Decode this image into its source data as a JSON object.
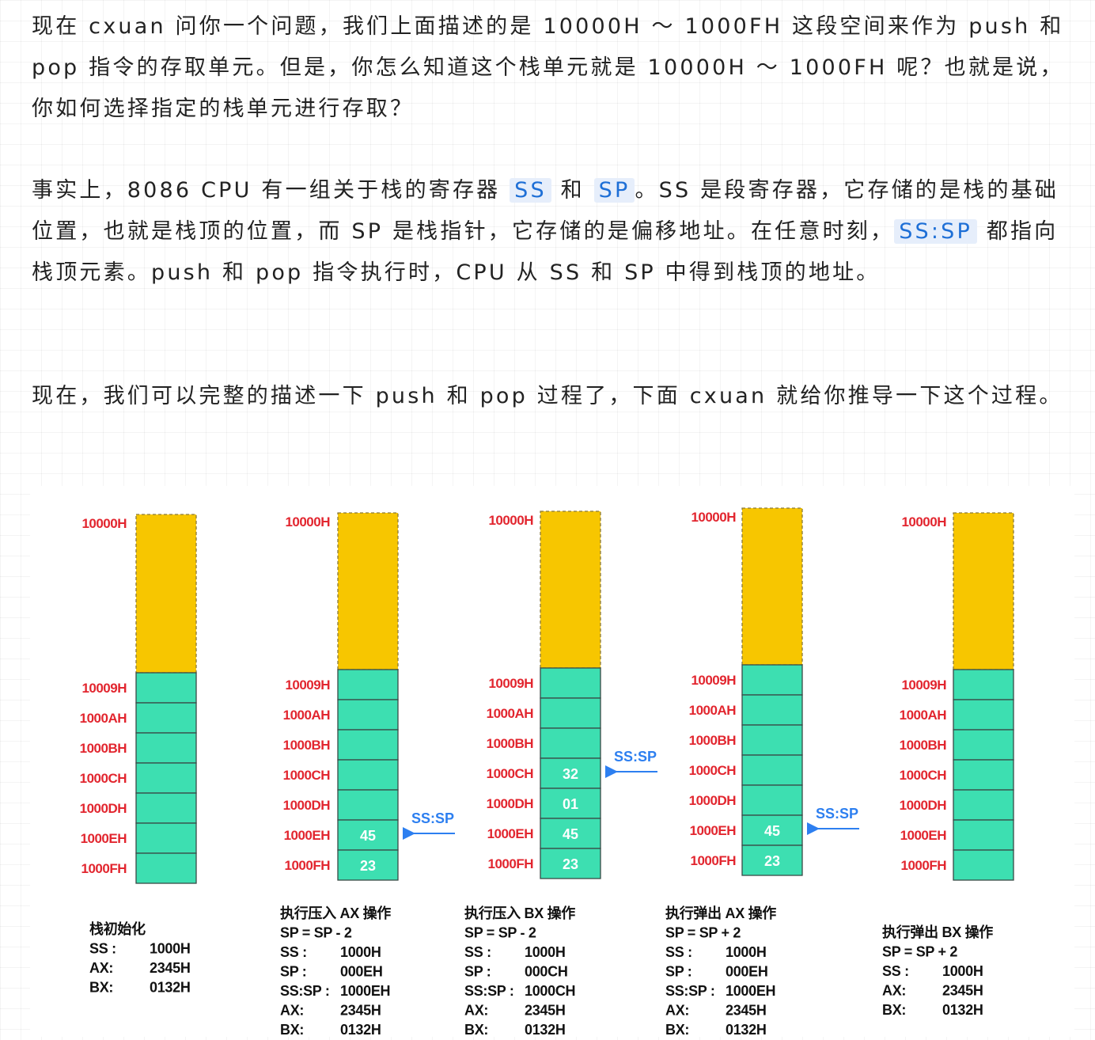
{
  "article": {
    "p1": [
      "现在 cxuan 问你一个问题，我们上面描述的是 10000H ～ 1000FH 这段空间来作为 push 和 pop 指令的存取单元。但是，你怎么知道这个栈单元就是 10000H ～ 1000FH 呢？也就是说，你如何选择指定的栈单元进行存取？"
    ],
    "p2": [
      "事实上，8086 CPU 有一组关于栈的寄存器 ",
      "SS",
      " 和 ",
      "SP",
      "。SS 是段寄存器，它存储的是栈的基础位置，也就是栈顶的位置，而 SP 是栈指针，它存储的是偏移地址。在任意时刻，",
      "SS:SP",
      " 都指向栈顶元素。push 和 pop 指令执行时，CPU 从 SS 和 SP 中得到栈顶的地址。"
    ],
    "p3": [
      "现在，我们可以完整的描述一下 push 和 pop 过程了，下面 cxuan 就给你推导一下这个过程。"
    ]
  },
  "diagram": {
    "colors": {
      "free": "#f7c600",
      "cell": "#3ddfb1",
      "address": "#e2262f",
      "pointer": "#2d7ff0"
    },
    "top_address": "10000H",
    "cell_addresses": [
      "10009H",
      "1000AH",
      "1000BH",
      "1000CH",
      "1000DH",
      "1000EH",
      "1000FH"
    ],
    "pointer_label": "SS:SP",
    "stages": [
      {
        "cells": [
          "",
          "",
          "",
          "",
          "",
          "",
          ""
        ],
        "pointer_at": null,
        "caption": [
          "栈初始化",
          "SS :      1000H",
          "AX:      2345H",
          "BX:      0132H"
        ]
      },
      {
        "cells": [
          "",
          "",
          "",
          "",
          "",
          "45",
          "23"
        ],
        "pointer_at": 5,
        "caption": [
          "执行压入 AX 操作",
          "SP = SP - 2",
          "SS :        1000H",
          "SP :        000EH",
          "SS:SP : 1000EH",
          "AX:        2345H",
          "BX:        0132H"
        ]
      },
      {
        "cells": [
          "",
          "",
          "",
          "32",
          "01",
          "45",
          "23"
        ],
        "pointer_at": 3,
        "caption": [
          "执行压入 BX 操作",
          "SP = SP - 2",
          "SS :        1000H",
          "SP :        000CH",
          "SS:SP : 1000CH",
          "AX:        2345H",
          "BX:        0132H"
        ]
      },
      {
        "cells": [
          "",
          "",
          "",
          "",
          "",
          "45",
          "23"
        ],
        "pointer_at": 5,
        "caption": [
          "执行弹出 AX 操作",
          "SP = SP + 2",
          "SS :        1000H",
          "SP :        000EH",
          "SS:SP : 1000EH",
          "AX:        2345H",
          "BX:        0132H"
        ]
      },
      {
        "cells": [
          "",
          "",
          "",
          "",
          "",
          "",
          ""
        ],
        "pointer_at": null,
        "caption": [
          "执行弹出 BX 操作",
          "SP = SP + 2",
          "SS :      1000H",
          "AX:      2345H",
          "BX:      0132H"
        ]
      }
    ]
  }
}
